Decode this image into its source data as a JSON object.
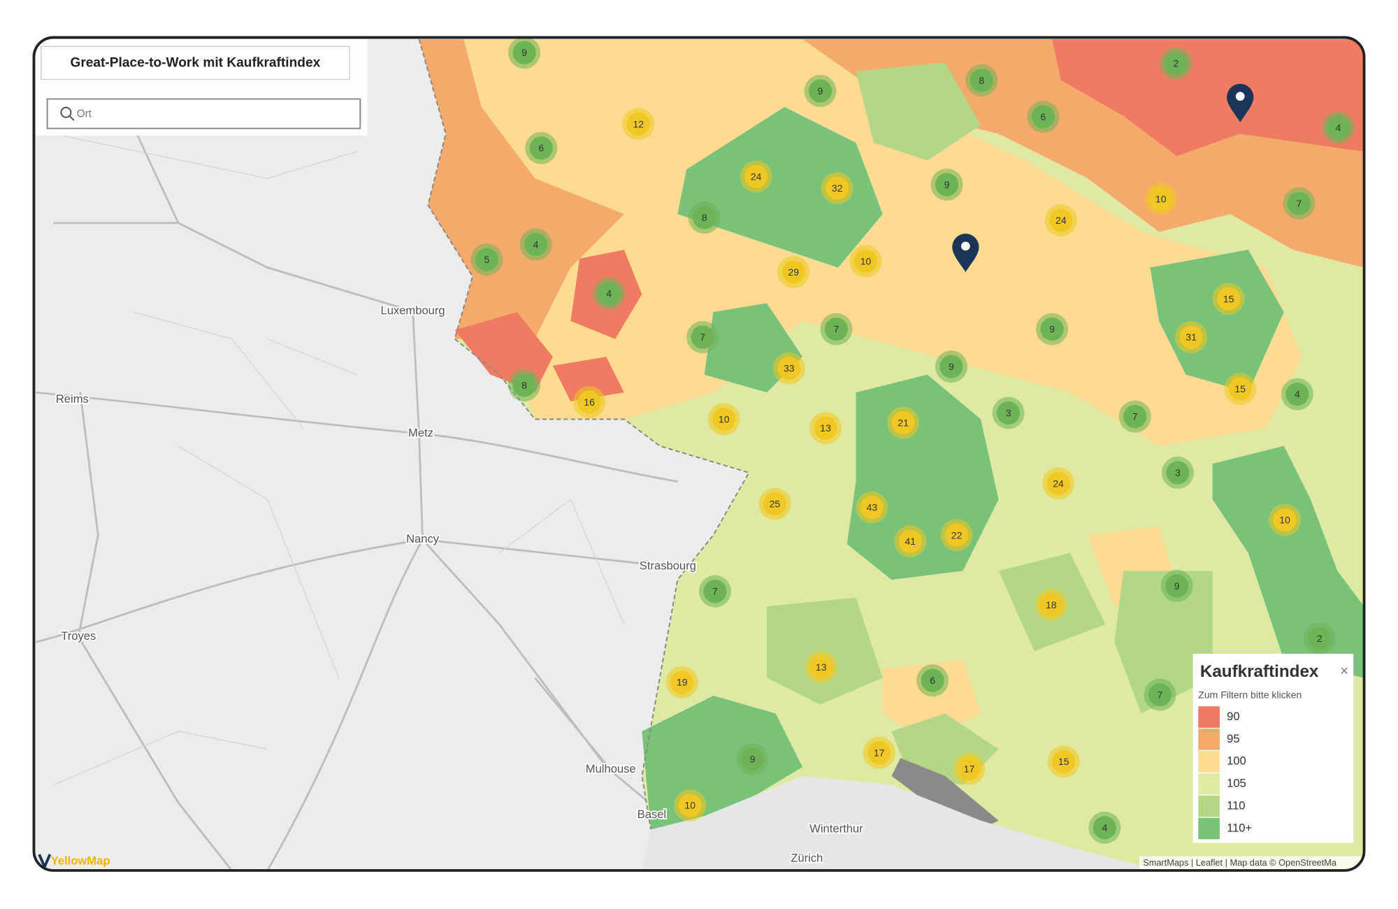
{
  "header": {
    "title": "Great-Place-to-Work mit Kaufkraftindex",
    "search_placeholder": "Ort"
  },
  "map": {
    "places": [
      "Luxembourg",
      "Reims",
      "Metz",
      "Nancy",
      "Strasbourg",
      "Troyes",
      "Mulhouse",
      "Basel",
      "Winterthur",
      "Zürich"
    ],
    "clusters": [
      9,
      2,
      8,
      9,
      6,
      4,
      12,
      6,
      24,
      32,
      9,
      10,
      7,
      8,
      24,
      4,
      5,
      29,
      10,
      4,
      15,
      7,
      7,
      9,
      31,
      33,
      9,
      8,
      16,
      15,
      4,
      10,
      13,
      21,
      3,
      7,
      3,
      24,
      25,
      43,
      41,
      22,
      10,
      7,
      9,
      18,
      2,
      13,
      19,
      6,
      7,
      17,
      17,
      15,
      9,
      10,
      4
    ],
    "attribution": "SmartMaps | Leaflet | Map data © OpenStreetMa",
    "logo": "YellowMap"
  },
  "legend": {
    "title": "Kaufkraftindex",
    "close": "×",
    "hint": "Zum Filtern bitte klicken",
    "items": [
      {
        "label": "90",
        "color": "#ef7c60"
      },
      {
        "label": "95",
        "color": "#f5aa6c"
      },
      {
        "label": "100",
        "color": "#fbdb90"
      },
      {
        "label": "105",
        "color": "#dfe9a1"
      },
      {
        "label": "110",
        "color": "#b4d785"
      },
      {
        "label": "110+",
        "color": "#79c27a"
      }
    ]
  }
}
